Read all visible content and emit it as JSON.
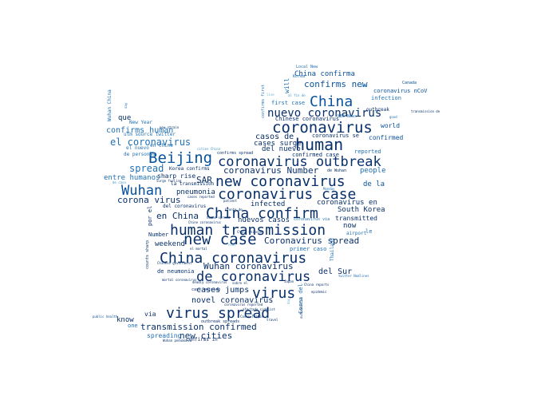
{
  "palette": {
    "navy": "#08306b",
    "dark_blue": "#08519c",
    "blue": "#2171b5",
    "mid_blue": "#4292c6",
    "light_blue": "#6baed6",
    "background": "#ffffff"
  },
  "words": [
    {
      "text": "China",
      "color": "dark_blue"
    },
    {
      "text": "human",
      "color": "navy"
    },
    {
      "text": "coronavirus",
      "color": "navy"
    },
    {
      "text": "nuevo coronavirus",
      "color": "navy"
    },
    {
      "text": "Beijing",
      "color": "dark_blue"
    },
    {
      "text": "coronavirus outbreak",
      "color": "navy"
    },
    {
      "text": "new coronavirus",
      "color": "navy"
    },
    {
      "text": "coronavirus case",
      "color": "navy"
    },
    {
      "text": "Wuhan",
      "color": "dark_blue"
    },
    {
      "text": "China confirm",
      "color": "navy"
    },
    {
      "text": "human transmission",
      "color": "navy"
    },
    {
      "text": "new case",
      "color": "navy"
    },
    {
      "text": "China coronavirus",
      "color": "navy"
    },
    {
      "text": "de coronavirus",
      "color": "navy"
    },
    {
      "text": "virus",
      "color": "navy"
    },
    {
      "text": "virus spread",
      "color": "navy"
    },
    {
      "text": "el coronavirus",
      "color": "blue"
    },
    {
      "text": "confirms human",
      "color": "blue"
    },
    {
      "text": "spread",
      "color": "blue"
    },
    {
      "text": "coronavirus Number",
      "color": "navy"
    },
    {
      "text": "people",
      "color": "blue"
    },
    {
      "text": "corona virus",
      "color": "navy"
    },
    {
      "text": "pneumonia",
      "color": "navy"
    },
    {
      "text": "SAR",
      "color": "navy"
    },
    {
      "text": "en China",
      "color": "navy"
    },
    {
      "text": "Coronavirus spread",
      "color": "navy"
    },
    {
      "text": "Wuhan coronavirus",
      "color": "navy"
    },
    {
      "text": "del Sur",
      "color": "navy"
    },
    {
      "text": "transmission confirmed",
      "color": "navy"
    },
    {
      "text": "new cities",
      "color": "navy"
    },
    {
      "text": "confirms new",
      "color": "dark_blue"
    },
    {
      "text": "China confirma",
      "color": "dark_blue"
    },
    {
      "text": "casos de",
      "color": "navy"
    },
    {
      "text": "cases surge",
      "color": "navy"
    },
    {
      "text": "del nuevo",
      "color": "navy"
    },
    {
      "text": "confirmed case",
      "color": "navy"
    },
    {
      "text": "sharp rise",
      "color": "navy"
    },
    {
      "text": "entre humanos",
      "color": "blue"
    },
    {
      "text": "que",
      "color": "navy"
    },
    {
      "text": "infected",
      "color": "navy"
    },
    {
      "text": "nuevos casos",
      "color": "navy"
    },
    {
      "text": "coronavirus en",
      "color": "navy"
    },
    {
      "text": "South Korea",
      "color": "navy"
    },
    {
      "text": "transmitted",
      "color": "navy"
    },
    {
      "text": "cases jumps",
      "color": "navy"
    },
    {
      "text": "novel coronavirus",
      "color": "navy"
    },
    {
      "text": "know",
      "color": "navy"
    },
    {
      "text": "via",
      "color": "navy"
    },
    {
      "text": "weekend",
      "color": "navy"
    },
    {
      "text": "now",
      "color": "navy"
    },
    {
      "text": "de la",
      "color": "dark_blue"
    },
    {
      "text": "world",
      "color": "dark_blue"
    },
    {
      "text": "confirmed",
      "color": "dark_blue"
    },
    {
      "text": "reported",
      "color": "blue"
    },
    {
      "text": "first case",
      "color": "blue"
    },
    {
      "text": "Chinese coronavirus",
      "color": "navy"
    },
    {
      "text": "coronavirus se",
      "color": "navy"
    },
    {
      "text": "coronavirus nCoV",
      "color": "dark_blue"
    },
    {
      "text": "New Year",
      "color": "blue"
    },
    {
      "text": "Wuhan China",
      "color": "blue"
    },
    {
      "text": "one",
      "color": "blue"
    },
    {
      "text": "spreading",
      "color": "blue"
    },
    {
      "text": "de neumonia",
      "color": "navy"
    },
    {
      "text": "Number",
      "color": "navy"
    },
    {
      "text": "por el",
      "color": "navy"
    },
    {
      "text": "primer caso",
      "color": "blue"
    },
    {
      "text": "Corea del",
      "color": "blue"
    },
    {
      "text": "will",
      "color": "blue"
    },
    {
      "text": "infection",
      "color": "blue"
    },
    {
      "text": "outbreak",
      "color": "navy"
    },
    {
      "text": "le",
      "color": "blue"
    },
    {
      "text": "airport",
      "color": "blue"
    },
    {
      "text": "Korea confirms",
      "color": "navy"
    },
    {
      "text": "de Wuhan",
      "color": "navy"
    },
    {
      "text": "la transmission",
      "color": "navy"
    },
    {
      "text": "del coronavirus",
      "color": "navy"
    },
    {
      "text": "en Chine",
      "color": "blue"
    },
    {
      "text": "el nuevo",
      "color": "blue"
    },
    {
      "text": "de personas",
      "color": "blue"
    },
    {
      "text": "utm source twitter",
      "color": "blue"
    },
    {
      "text": "confirms spread",
      "color": "navy"
    },
    {
      "text": "Canada",
      "color": "dark_blue"
    },
    {
      "text": "Thailand",
      "color": "blue"
    },
    {
      "text": "public health",
      "color": "dark_blue"
    },
    {
      "text": "confirms in",
      "color": "navy"
    },
    {
      "text": "outbreak spreads",
      "color": "navy"
    },
    {
      "text": "transmission de",
      "color": "navy"
    },
    {
      "text": "Local New",
      "color": "blue"
    },
    {
      "text": "Korea",
      "color": "blue"
    },
    {
      "text": "counts sharp",
      "color": "navy"
    },
    {
      "text": "coronavirus via",
      "color": "blue"
    },
    {
      "text": "Wuhan pneumonia",
      "color": "navy"
    },
    {
      "text": "deadly coronavirus",
      "color": "navy"
    },
    {
      "text": "coronavirus reported",
      "color": "navy"
    },
    {
      "text": "Chinese government",
      "color": "navy"
    },
    {
      "text": "mortal coronavirus",
      "color": "navy"
    },
    {
      "text": "China reports",
      "color": "navy"
    },
    {
      "text": "outbreak is",
      "color": "navy"
    },
    {
      "text": "Japan",
      "color": "navy"
    },
    {
      "text": "travel",
      "color": "navy"
    },
    {
      "text": "Monday",
      "color": "blue"
    },
    {
      "text": "say",
      "color": "blue"
    },
    {
      "text": "confirms first",
      "color": "blue"
    },
    {
      "text": "good",
      "color": "blue"
    },
    {
      "text": "new",
      "color": "blue"
    },
    {
      "text": "NBC News",
      "color": "blue"
    },
    {
      "text": "cities China",
      "color": "mid_blue"
    },
    {
      "text": "de caso",
      "color": "mid_blue"
    },
    {
      "text": "surge fueling",
      "color": "navy"
    },
    {
      "text": "Chine coronavirus",
      "color": "navy"
    },
    {
      "text": "twitter Nadlines",
      "color": "blue"
    },
    {
      "text": "Cases Triple",
      "color": "navy"
    },
    {
      "text": "case outside",
      "color": "navy"
    },
    {
      "text": "cases reported",
      "color": "navy"
    },
    {
      "text": "China Chinese",
      "color": "navy"
    },
    {
      "text": "new strain",
      "color": "navy"
    },
    {
      "text": "day",
      "color": "light_blue"
    },
    {
      "text": "live",
      "color": "light_blue"
    },
    {
      "text": "al fin de",
      "color": "mid_blue"
    },
    {
      "text": "news",
      "color": "light_blue"
    },
    {
      "text": "human spread",
      "color": "navy"
    },
    {
      "text": "bronte de",
      "color": "navy"
    },
    {
      "text": "epidemic",
      "color": "navy"
    },
    {
      "text": "el mortal",
      "color": "navy"
    },
    {
      "text": "patient",
      "color": "navy"
    },
    {
      "text": "sobre el",
      "color": "navy"
    },
    {
      "text": "afectado sidelist",
      "color": "navy"
    },
    {
      "text": "queda el",
      "color": "dark_blue"
    }
  ]
}
